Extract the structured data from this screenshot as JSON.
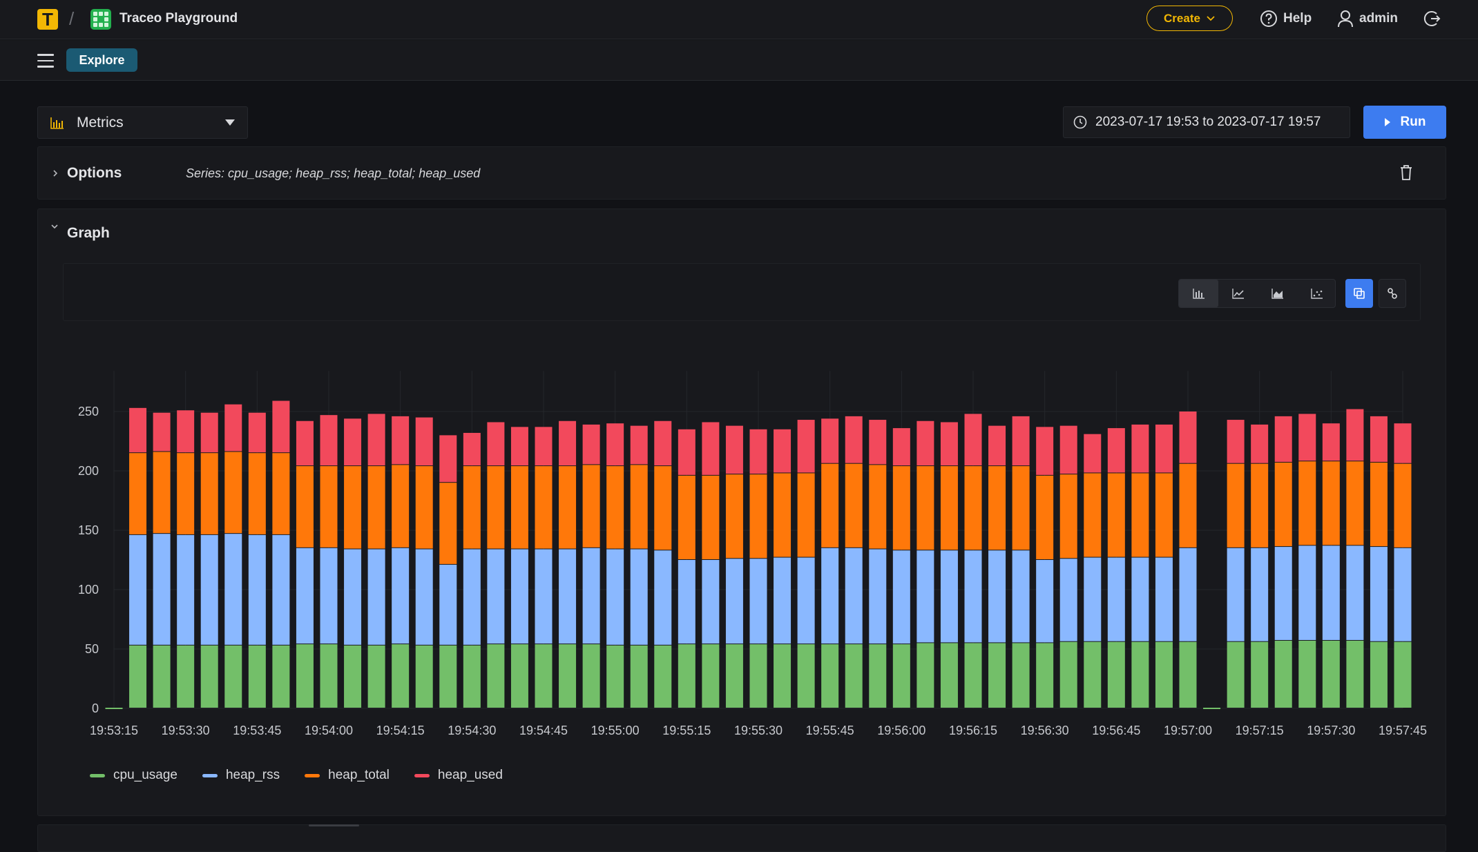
{
  "header": {
    "logo_letter": "T",
    "separator": "/",
    "workspace_name": "Traceo Playground",
    "create_label": "Create",
    "help_label": "Help",
    "user_label": "admin"
  },
  "subnav": {
    "explore_label": "Explore"
  },
  "toolbar": {
    "datasource_label": "Metrics",
    "time_range": "2023-07-17 19:53 to 2023-07-17 19:57",
    "run_label": "Run"
  },
  "options_panel": {
    "title": "Options",
    "series_text": "Series: cpu_usage; heap_rss; heap_total; heap_used"
  },
  "graph_panel": {
    "title": "Graph",
    "viz_buttons": [
      "bar-chart-icon",
      "line-chart-icon",
      "area-chart-icon",
      "scatter-chart-icon"
    ],
    "active_viz": "bar-chart-icon"
  },
  "colors": {
    "accent": "#3d7cf0",
    "brand": "#f2b704",
    "cpu_usage": "#73bf69",
    "heap_rss": "#8ab8ff",
    "heap_total": "#ff780a",
    "heap_used": "#f2495c"
  },
  "chart_data": {
    "type": "bar",
    "stacked": true,
    "title": "",
    "xlabel": "",
    "ylabel": "",
    "ylim": [
      0,
      290
    ],
    "yticks": [
      0,
      50,
      100,
      150,
      200,
      250
    ],
    "x_tick_labels": [
      "19:53:15",
      "19:53:30",
      "19:53:45",
      "19:54:00",
      "19:54:15",
      "19:54:30",
      "19:54:45",
      "19:55:00",
      "19:55:15",
      "19:55:30",
      "19:55:45",
      "19:56:00",
      "19:56:15",
      "19:56:30",
      "19:56:45",
      "19:57:00",
      "19:57:15",
      "19:57:30",
      "19:57:45"
    ],
    "grid": true,
    "legend_position": "bottom-left",
    "categories": [
      "19:53:15",
      "19:53:20",
      "19:53:25",
      "19:53:30",
      "19:53:35",
      "19:53:40",
      "19:53:45",
      "19:53:50",
      "19:53:55",
      "19:54:00",
      "19:54:05",
      "19:54:10",
      "19:54:15",
      "19:54:20",
      "19:54:25",
      "19:54:30",
      "19:54:35",
      "19:54:40",
      "19:54:45",
      "19:54:50",
      "19:54:55",
      "19:55:00",
      "19:55:05",
      "19:55:10",
      "19:55:15",
      "19:55:20",
      "19:55:25",
      "19:55:30",
      "19:55:35",
      "19:55:40",
      "19:55:45",
      "19:55:50",
      "19:55:55",
      "19:56:00",
      "19:56:05",
      "19:56:10",
      "19:56:15",
      "19:56:20",
      "19:56:25",
      "19:56:30",
      "19:56:35",
      "19:56:40",
      "19:56:45",
      "19:56:50",
      "19:56:55",
      "19:57:00",
      "19:57:05",
      "19:57:10",
      "19:57:15",
      "19:57:20",
      "19:57:25",
      "19:57:30",
      "19:57:35",
      "19:57:40",
      "19:57:45"
    ],
    "series": [
      {
        "name": "cpu_usage",
        "values": [
          0,
          53,
          53,
          53,
          53,
          53,
          53,
          53,
          54,
          54,
          53,
          53,
          54,
          53,
          53,
          53,
          54,
          54,
          54,
          54,
          54,
          53,
          53,
          53,
          54,
          54,
          54,
          54,
          54,
          54,
          54,
          54,
          54,
          54,
          55,
          55,
          55,
          55,
          55,
          55,
          56,
          56,
          56,
          56,
          56,
          56,
          0,
          56,
          56,
          57,
          57,
          57,
          57,
          56,
          56
        ]
      },
      {
        "name": "heap_rss",
        "values": [
          0,
          93,
          94,
          93,
          93,
          94,
          93,
          93,
          81,
          81,
          81,
          81,
          81,
          81,
          68,
          81,
          80,
          80,
          80,
          80,
          81,
          81,
          81,
          80,
          71,
          71,
          72,
          72,
          73,
          73,
          81,
          81,
          80,
          79,
          78,
          78,
          78,
          78,
          78,
          70,
          70,
          71,
          71,
          71,
          71,
          79,
          0,
          79,
          79,
          79,
          80,
          80,
          80,
          80,
          79
        ]
      },
      {
        "name": "heap_total",
        "values": [
          0,
          69,
          69,
          69,
          69,
          69,
          69,
          69,
          69,
          69,
          70,
          70,
          70,
          70,
          69,
          70,
          70,
          70,
          70,
          70,
          70,
          70,
          71,
          71,
          71,
          71,
          71,
          71,
          71,
          71,
          71,
          71,
          71,
          71,
          71,
          71,
          71,
          71,
          71,
          71,
          71,
          71,
          71,
          71,
          71,
          71,
          0,
          71,
          71,
          71,
          71,
          71,
          71,
          71,
          71
        ]
      },
      {
        "name": "heap_used",
        "values": [
          0,
          38,
          33,
          36,
          34,
          40,
          34,
          44,
          38,
          43,
          40,
          44,
          41,
          41,
          40,
          28,
          37,
          33,
          33,
          38,
          34,
          36,
          33,
          38,
          39,
          45,
          41,
          38,
          37,
          45,
          38,
          40,
          38,
          32,
          38,
          37,
          44,
          34,
          42,
          41,
          41,
          33,
          38,
          41,
          41,
          44,
          0,
          37,
          33,
          39,
          40,
          32,
          44,
          39,
          34
        ]
      }
    ]
  },
  "partial_label": ""
}
